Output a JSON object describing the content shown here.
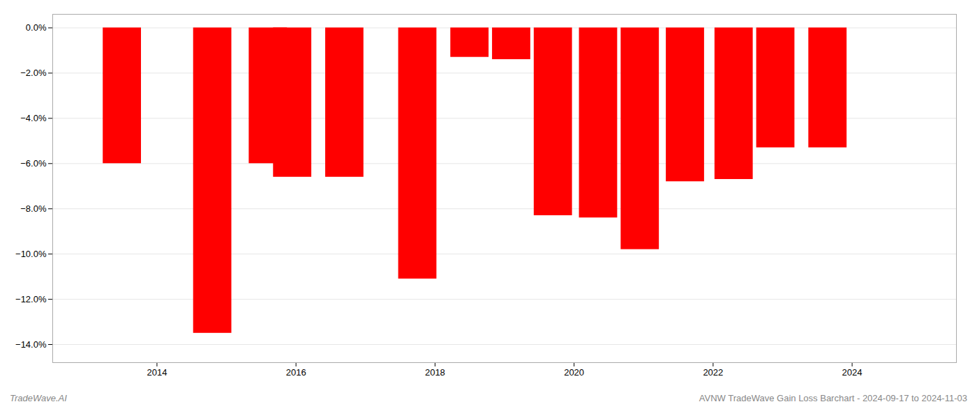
{
  "chart_data": {
    "type": "bar",
    "title": "AVNW TradeWave Gain Loss Barchart - 2024-09-17 to 2024-11-03",
    "annotations": [
      "TradeWave.AI"
    ],
    "x": [
      2013.5,
      2014.8,
      2015.6,
      2015.95,
      2016.7,
      2017.75,
      2018.5,
      2019.1,
      2019.7,
      2020.35,
      2020.95,
      2021.6,
      2022.3,
      2022.9,
      2023.65
    ],
    "values": [
      -6.0,
      -13.5,
      -6.0,
      -6.6,
      -6.6,
      -11.1,
      -1.3,
      -1.4,
      -8.3,
      -8.4,
      -9.8,
      -6.8,
      -6.7,
      -5.3,
      -5.3
    ],
    "color": "#ff0000",
    "xlim": [
      2012.5,
      2025.5
    ],
    "xticks": [
      2014,
      2016,
      2018,
      2020,
      2022,
      2024
    ],
    "ylim": [
      -14.8,
      0.6
    ],
    "yticks": [
      {
        "value": 0.0,
        "label": "0.0%"
      },
      {
        "value": -2.0,
        "label": "−2.0%"
      },
      {
        "value": -4.0,
        "label": "−4.0%"
      },
      {
        "value": -6.0,
        "label": "−6.0%"
      },
      {
        "value": -8.0,
        "label": "−8.0%"
      },
      {
        "value": -10.0,
        "label": "−10.0%"
      },
      {
        "value": -12.0,
        "label": "−12.0%"
      },
      {
        "value": -14.0,
        "label": "−14.0%"
      }
    ],
    "grid": true
  }
}
